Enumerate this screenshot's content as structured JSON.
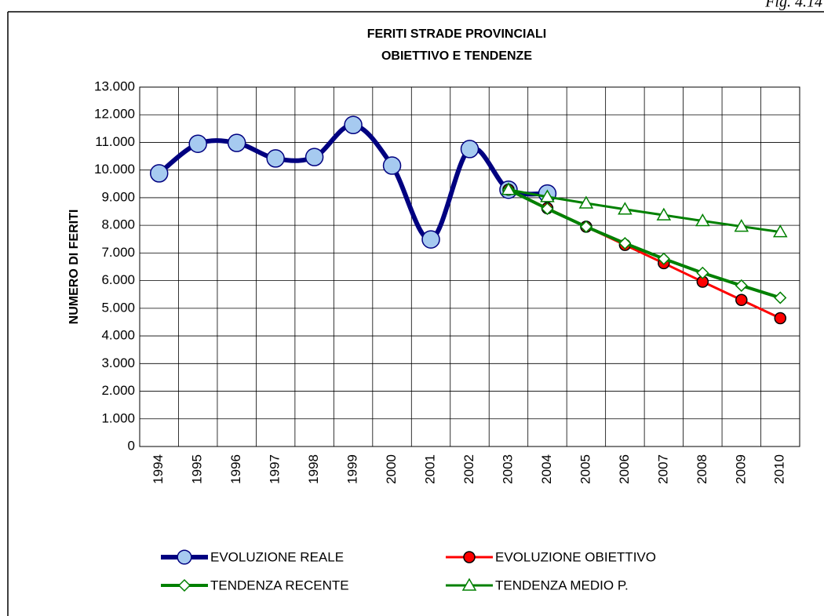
{
  "figure_label": "Fig. 4.14",
  "chart_data": {
    "type": "line",
    "title": [
      "FERITI STRADE PROVINCIALI",
      "OBIETTIVO E TENDENZE"
    ],
    "y_label": "NUMERO DI FERITI",
    "categories": [
      "1994",
      "1995",
      "1996",
      "1997",
      "1998",
      "1999",
      "2000",
      "2001",
      "2002",
      "2003",
      "2004",
      "2005",
      "2006",
      "2007",
      "2008",
      "2009",
      "2010"
    ],
    "series": [
      {
        "name": "EVOLUZIONE REALE",
        "color": "#000080",
        "marker_fill": "#a6caf0",
        "marker": "circle",
        "smooth": true,
        "line_width": 6,
        "values": [
          9880,
          10950,
          10980,
          10420,
          10470,
          11630,
          10160,
          7490,
          10760,
          9290,
          9150,
          null,
          null,
          null,
          null,
          null,
          null
        ]
      },
      {
        "name": "EVOLUZIONE OBIETTIVO",
        "color": "#ff0000",
        "marker_fill": "#ff0000",
        "marker": "circle-small",
        "smooth": false,
        "line_width": 3,
        "values": [
          null,
          null,
          null,
          null,
          null,
          null,
          null,
          null,
          null,
          9290,
          8620,
          7950,
          7290,
          6630,
          5960,
          5300,
          4640
        ]
      },
      {
        "name": "TENDENZA RECENTE",
        "color": "#008000",
        "marker_fill": "#ffffff",
        "marker": "diamond",
        "smooth": false,
        "line_width": 4,
        "values": [
          null,
          null,
          null,
          null,
          null,
          null,
          null,
          null,
          null,
          9290,
          8600,
          7950,
          7350,
          6790,
          6280,
          5820,
          5380
        ]
      },
      {
        "name": "TENDENZA MEDIO P.",
        "color": "#008000",
        "marker_fill": "#ffffff",
        "marker": "triangle",
        "smooth": false,
        "line_width": 3,
        "values": [
          null,
          null,
          null,
          null,
          null,
          null,
          null,
          null,
          null,
          9290,
          9030,
          8800,
          8580,
          8370,
          8160,
          7960,
          7760
        ]
      }
    ],
    "ylim": [
      0,
      13000
    ],
    "yticks": [
      0,
      {
        "value": 1000,
        "label": "1.000"
      },
      {
        "value": 2000,
        "label": "2.000"
      },
      {
        "value": 3000,
        "label": "3.000"
      },
      {
        "value": 4000,
        "label": "4.000"
      },
      {
        "value": 5000,
        "label": "5.000"
      },
      {
        "value": 6000,
        "label": "6.000"
      },
      {
        "value": 7000,
        "label": "7.000"
      },
      {
        "value": 8000,
        "label": "8.000"
      },
      {
        "value": 9000,
        "label": "9.000"
      },
      {
        "value": 10000,
        "label": "10.000"
      },
      {
        "value": 11000,
        "label": "11.000"
      },
      {
        "value": 12000,
        "label": "12.000"
      },
      {
        "value": 13000,
        "label": "13.000"
      }
    ],
    "grid": true
  }
}
